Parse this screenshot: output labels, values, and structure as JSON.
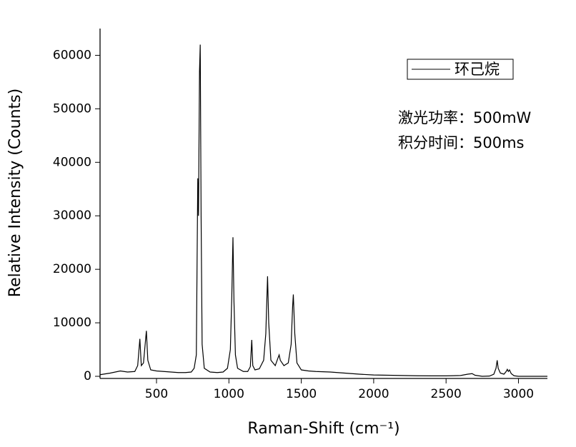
{
  "chart_data": {
    "type": "line",
    "x_label": "Raman-Shift (cm⁻¹)",
    "y_label": "Relative Intensity (Counts)",
    "annotations": [
      "激光功率：500mW",
      "积分时间：500ms"
    ],
    "xlim": [
      110,
      3200
    ],
    "ylim": [
      -400,
      65000
    ],
    "xticks": [
      500,
      1000,
      1500,
      2000,
      2500,
      3000
    ],
    "yticks": [
      0,
      10000,
      20000,
      30000,
      40000,
      50000,
      60000
    ],
    "legend": "top-right",
    "x": [
      110,
      180,
      250,
      300,
      350,
      370,
      385,
      395,
      410,
      430,
      440,
      460,
      500,
      550,
      600,
      650,
      700,
      740,
      760,
      775,
      785,
      790,
      797,
      802,
      808,
      815,
      830,
      870,
      920,
      960,
      990,
      1010,
      1020,
      1028,
      1035,
      1045,
      1060,
      1100,
      1130,
      1148,
      1158,
      1165,
      1180,
      1210,
      1240,
      1255,
      1267,
      1275,
      1290,
      1320,
      1340,
      1347,
      1355,
      1380,
      1410,
      1430,
      1440,
      1445,
      1455,
      1470,
      1500,
      1550,
      1600,
      1700,
      1800,
      1900,
      2000,
      2100,
      2200,
      2300,
      2400,
      2500,
      2600,
      2650,
      2680,
      2700,
      2750,
      2800,
      2830,
      2845,
      2853,
      2860,
      2875,
      2900,
      2915,
      2923,
      2930,
      2938,
      2950,
      2970,
      3000,
      3100,
      3200
    ],
    "series": [
      {
        "name": "环己烷",
        "color": "#000000",
        "values": [
          300,
          600,
          1000,
          800,
          900,
          2000,
          7000,
          2000,
          2500,
          8500,
          3000,
          1200,
          1000,
          900,
          800,
          700,
          700,
          800,
          1500,
          4000,
          37000,
          30000,
          57000,
          62000,
          30000,
          6000,
          1500,
          800,
          700,
          800,
          1500,
          5000,
          15000,
          26000,
          14000,
          4000,
          1500,
          900,
          900,
          1800,
          6800,
          2000,
          1200,
          1400,
          3000,
          8000,
          18700,
          10000,
          3000,
          2000,
          3500,
          4000,
          3000,
          2000,
          2500,
          6000,
          13000,
          15300,
          8000,
          2500,
          1200,
          1000,
          900,
          800,
          600,
          400,
          250,
          200,
          150,
          100,
          80,
          80,
          150,
          400,
          500,
          200,
          0,
          50,
          400,
          1500,
          3000,
          1500,
          600,
          400,
          900,
          1300,
          900,
          1200,
          500,
          100,
          0,
          0,
          0
        ]
      }
    ]
  }
}
